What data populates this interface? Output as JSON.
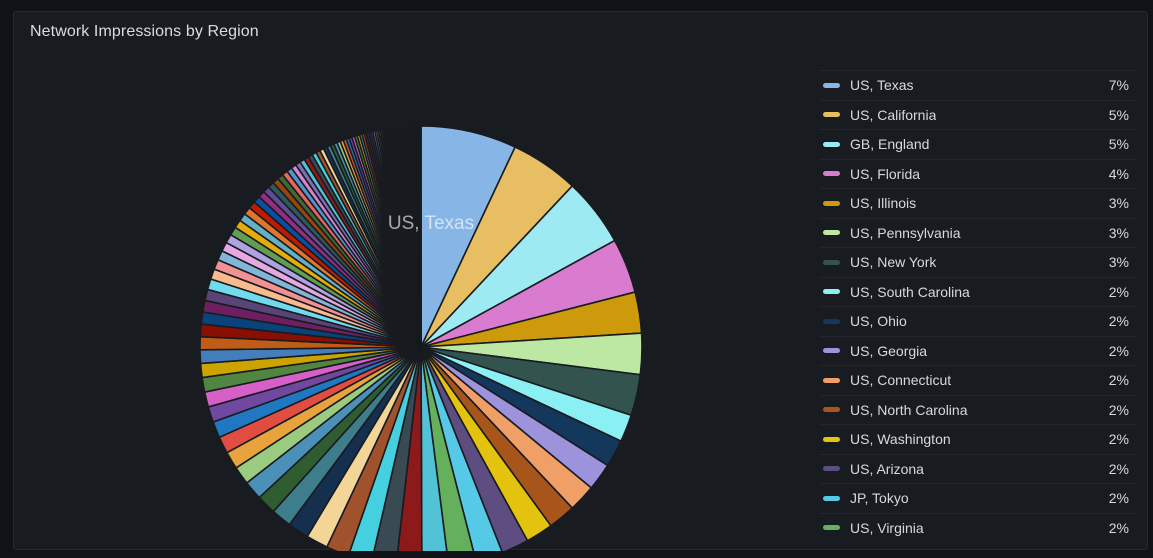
{
  "panel": {
    "title": "Network Impressions by Region"
  },
  "chart_data": {
    "type": "pie",
    "title": "Network Impressions by Region",
    "value_format": "percent",
    "legend_position": "right-table",
    "slice_label": "US, Texas",
    "series": [
      {
        "label": "US, Texas",
        "value_text": "7%",
        "percent": 7,
        "color": "#87B6E6"
      },
      {
        "label": "US, California",
        "value_text": "5%",
        "percent": 5,
        "color": "#E8BE62"
      },
      {
        "label": "GB, England",
        "value_text": "5%",
        "percent": 5,
        "color": "#9EEAF2"
      },
      {
        "label": "US, Florida",
        "value_text": "4%",
        "percent": 4,
        "color": "#D97BCF"
      },
      {
        "label": "US, Illinois",
        "value_text": "3%",
        "percent": 3,
        "color": "#CC9A0A"
      },
      {
        "label": "US, Pennsylvania",
        "value_text": "3%",
        "percent": 3,
        "color": "#BCE8A4"
      },
      {
        "label": "US, New York",
        "value_text": "3%",
        "percent": 3,
        "color": "#33534F"
      },
      {
        "label": "US, South Carolina",
        "value_text": "2%",
        "percent": 2,
        "color": "#8BF0F4"
      },
      {
        "label": "US, Ohio",
        "value_text": "2%",
        "percent": 2,
        "color": "#14375C"
      },
      {
        "label": "US, Georgia",
        "value_text": "2%",
        "percent": 2,
        "color": "#9D93DD"
      },
      {
        "label": "US, Connecticut",
        "value_text": "2%",
        "percent": 2,
        "color": "#F0A067"
      },
      {
        "label": "US, North Carolina",
        "value_text": "2%",
        "percent": 2,
        "color": "#A8551B"
      },
      {
        "label": "US, Washington",
        "value_text": "2%",
        "percent": 2,
        "color": "#E3C30D"
      },
      {
        "label": "US, Arizona",
        "value_text": "2%",
        "percent": 2,
        "color": "#5D4D80"
      },
      {
        "label": "JP, Tokyo",
        "value_text": "2%",
        "percent": 2,
        "color": "#55C9E6"
      },
      {
        "label": "US, Virginia",
        "value_text": "2%",
        "percent": 2,
        "color": "#64B05C"
      }
    ],
    "other_unlabeled": {
      "note": "long tail of small unlabeled region slices, shrinking clockwise into the dark upper-left zone",
      "total_percent": 52,
      "count": 130,
      "decay": 0.963,
      "palette": [
        "#52C2D6",
        "#8C1A1A",
        "#3A4A52",
        "#45D0E0",
        "#A0522D",
        "#F4D598",
        "#15304F",
        "#3E7E8C",
        "#2F5D31",
        "#4A90B8",
        "#9ACB7E",
        "#E8A33D",
        "#E24D42",
        "#1F78C1",
        "#7048A0",
        "#D65FC8",
        "#508642",
        "#CCA300",
        "#447EBC",
        "#C15C17",
        "#890F02",
        "#0A437C",
        "#6D1F62",
        "#584477",
        "#70DBED",
        "#F9BA8F",
        "#F29191",
        "#82B5D8",
        "#E5A8E2",
        "#AEA2E0",
        "#629E51",
        "#E5AC0E",
        "#64B0C8",
        "#E0752D",
        "#BF1B00",
        "#0A50A1",
        "#962D82",
        "#614D93",
        "#2F575E",
        "#99440A",
        "#3F6833",
        "#EA6460",
        "#5195CE",
        "#D683CE",
        "#806EB7"
      ]
    },
    "pie_style": {
      "stroke_color": "#181b1f",
      "start_angle_deg": 0,
      "direction": "clockwise"
    }
  }
}
